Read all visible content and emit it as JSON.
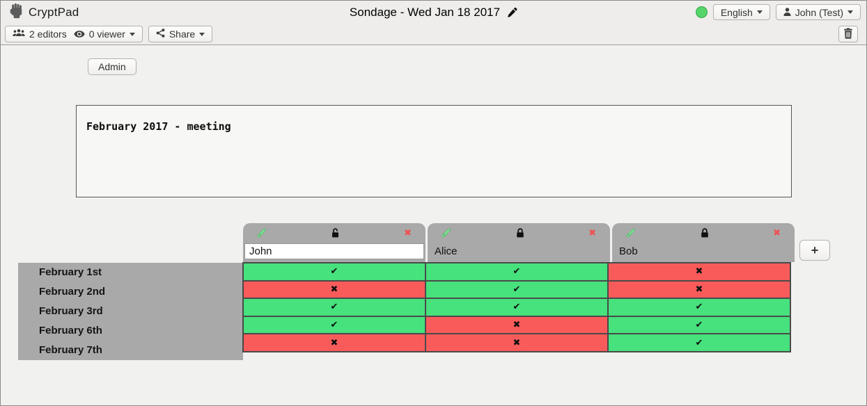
{
  "brand": {
    "name": "CryptPad"
  },
  "titlebar": {
    "document_title": "Sondage - Wed Jan 18 2017",
    "status_color": "#55d46a",
    "language_button_label": "English",
    "user_button_label": "John (Test)"
  },
  "toolbar": {
    "editors_label": "2 editors",
    "viewers_label": "0 viewer",
    "share_label": "Share"
  },
  "admin_button_label": "Admin",
  "description_text": "February 2017 - meeting",
  "poll": {
    "add_column_label": "+",
    "remove_column_glyph": "✖",
    "columns": [
      {
        "name": "John",
        "editable": true,
        "locked": false
      },
      {
        "name": "Alice",
        "editable": false,
        "locked": true
      },
      {
        "name": "Bob",
        "editable": false,
        "locked": true
      }
    ],
    "rows": [
      {
        "label": "February 1st",
        "votes": [
          "yes",
          "yes",
          "no"
        ]
      },
      {
        "label": "February 2nd",
        "votes": [
          "no",
          "yes",
          "no"
        ]
      },
      {
        "label": "February 3rd",
        "votes": [
          "yes",
          "yes",
          "yes"
        ]
      },
      {
        "label": "February 6th",
        "votes": [
          "yes",
          "no",
          "yes"
        ]
      },
      {
        "label": "February 7th",
        "votes": [
          "no",
          "no",
          "yes"
        ]
      }
    ],
    "glyphs": {
      "yes": "✔",
      "no": "✖"
    },
    "colors": {
      "yes": "#47e17d",
      "no": "#f95b5b"
    }
  }
}
